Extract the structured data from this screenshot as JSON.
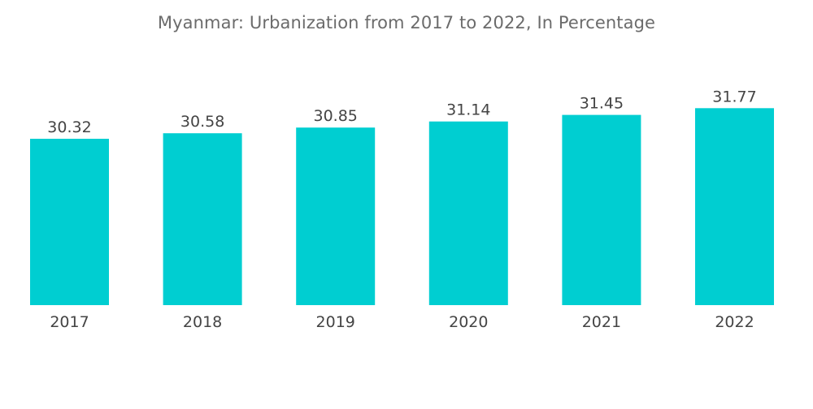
{
  "chart_data": {
    "type": "bar",
    "title": "Myanmar: Urbanization from 2017 to 2022, In Percentage",
    "categories": [
      "2017",
      "2018",
      "2019",
      "2020",
      "2021",
      "2022"
    ],
    "values": [
      30.32,
      30.58,
      30.85,
      31.14,
      31.45,
      31.77
    ],
    "data_labels": [
      "30.32",
      "30.58",
      "30.85",
      "31.14",
      "31.45",
      "31.77"
    ],
    "bar_color": "#00ced1",
    "grid": false,
    "legend": "none"
  }
}
